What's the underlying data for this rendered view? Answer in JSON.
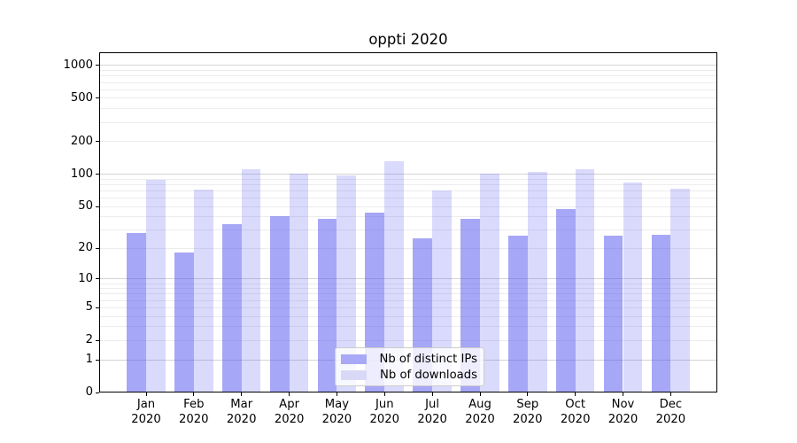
{
  "title": "oppti 2020",
  "chart_data": {
    "type": "bar",
    "title": "oppti 2020",
    "categories": [
      "Jan 2020",
      "Feb 2020",
      "Mar 2020",
      "Apr 2020",
      "May 2020",
      "Jun 2020",
      "Jul 2020",
      "Aug 2020",
      "Sep 2020",
      "Oct 2020",
      "Nov 2020",
      "Dec 2020"
    ],
    "series": [
      {
        "name": "Nb of distinct IPs",
        "color": "#a9a9f7",
        "fill": "rgba(80,80,240,0.50)",
        "values": [
          28,
          18,
          34,
          40,
          38,
          43,
          25,
          38,
          26,
          47,
          26,
          27
        ]
      },
      {
        "name": "Nb of downloads",
        "color": "#d9d9f7",
        "fill": "rgba(80,80,240,0.21)",
        "values": [
          88,
          71,
          110,
          100,
          96,
          130,
          70,
          100,
          103,
          109,
          83,
          72
        ]
      }
    ],
    "xlabel": "",
    "ylabel": "",
    "yscale": "log(1+x)",
    "y_ticks": [
      0,
      1,
      2,
      5,
      10,
      20,
      50,
      100,
      200,
      500,
      1000
    ],
    "ylim": [
      0,
      1300
    ],
    "grid": "horizontal, major and minor",
    "legend_position": "lower center"
  },
  "colors": {
    "background": "#ffffff",
    "axis": "#000000",
    "text": "#000000",
    "grid_major": "#d4d4d4",
    "grid_minor": "#ececec",
    "legend_border": "#cccccc",
    "series_ips": "#a9a9f7",
    "series_downloads": "#d9d9f7"
  }
}
